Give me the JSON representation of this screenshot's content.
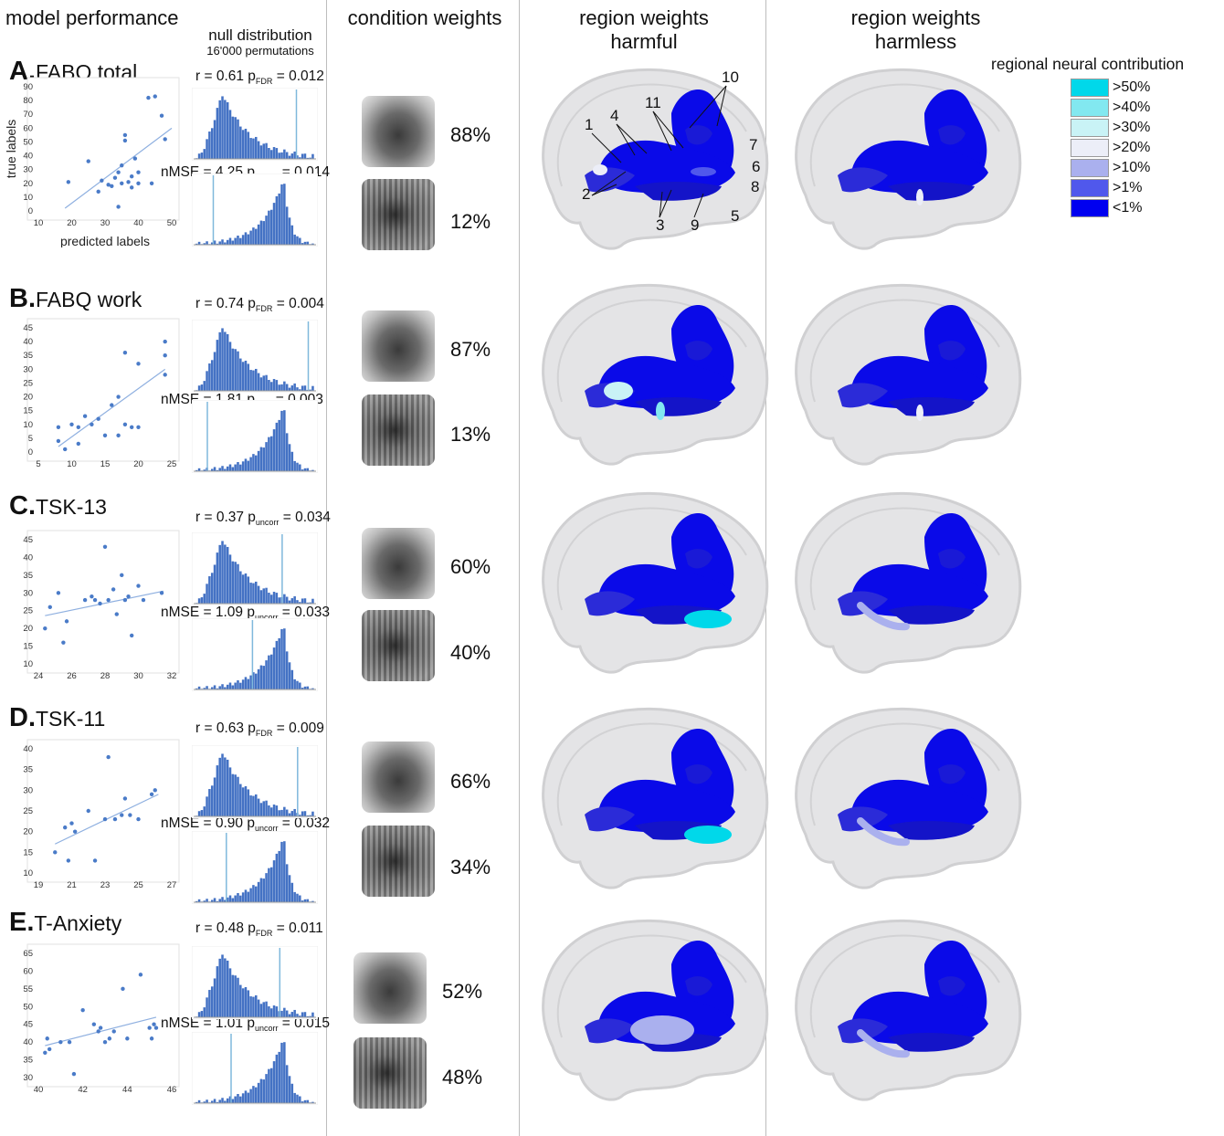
{
  "headers": {
    "model_performance": "model performance",
    "null_distribution": "null distribution",
    "permutations": "16'000 permutations",
    "condition_weights": "condition weights",
    "region_harmful_1": "region weights",
    "region_harmful_2": "harmful",
    "region_harmless_1": "region weights",
    "region_harmless_2": "harmless"
  },
  "legend": {
    "title": "regional neural contribution",
    "items": [
      {
        "label": ">50%",
        "color": "#00d8ea"
      },
      {
        "label": ">40%",
        "color": "#82e8f0"
      },
      {
        "label": ">30%",
        "color": "#c9f3f6"
      },
      {
        "label": ">20%",
        "color": "#eceef8"
      },
      {
        "label": ">10%",
        "color": "#aab0ee"
      },
      {
        "label": ">1%",
        "color": "#5058ec"
      },
      {
        "label": "<1%",
        "color": "#0000f0"
      }
    ]
  },
  "region_numbers": [
    "10",
    "11",
    "1",
    "4",
    "7",
    "6",
    "8",
    "2",
    "3",
    "9",
    "5"
  ],
  "colors": {
    "series": "#4a7bc8",
    "hist": "#4472c4",
    "brain": "#0a0ae8"
  },
  "panels": [
    {
      "letter": "A.",
      "name": "FABQ total",
      "r_stat": {
        "pre": "r = 0.61 p",
        "sub": "FDR",
        "post": " = 0.012"
      },
      "mse_stat": {
        "pre": "nMSE = 4.25 p",
        "sub": "uncorr",
        "post": " = 0.014"
      },
      "harmful": "88%",
      "harmless": "12%",
      "chart_data": {
        "type": "scatter",
        "xlabel": "predicted labels",
        "ylabel": "true labels",
        "xlim": [
          10,
          50
        ],
        "ylim": [
          0,
          90
        ],
        "xticks": [
          "10",
          "20",
          "30",
          "40",
          "50"
        ],
        "yticks": [
          "0",
          "10",
          "20",
          "30",
          "40",
          "50",
          "60",
          "70",
          "80",
          "90"
        ],
        "points": [
          [
            19,
            21
          ],
          [
            25,
            36
          ],
          [
            28,
            14
          ],
          [
            29,
            22
          ],
          [
            31,
            19
          ],
          [
            32,
            18
          ],
          [
            33,
            24
          ],
          [
            34,
            3
          ],
          [
            34,
            28
          ],
          [
            35,
            33
          ],
          [
            35,
            20
          ],
          [
            36,
            51
          ],
          [
            36,
            55
          ],
          [
            37,
            21
          ],
          [
            38,
            17
          ],
          [
            38,
            25
          ],
          [
            39,
            38
          ],
          [
            40,
            28
          ],
          [
            40,
            20
          ],
          [
            43,
            82
          ],
          [
            45,
            83
          ],
          [
            47,
            69
          ],
          [
            48,
            52
          ],
          [
            44,
            20
          ]
        ],
        "trend": [
          [
            18,
            2
          ],
          [
            50,
            60
          ]
        ]
      }
    },
    {
      "letter": "B.",
      "name": "FABQ work",
      "r_stat": {
        "pre": "r = 0.74 p",
        "sub": "FDR",
        "post": " = 0.004"
      },
      "mse_stat": {
        "pre": "nMSE = 1.81 p",
        "sub": "FDR",
        "post": " = 0.003"
      },
      "harmful": "87%",
      "harmless": "13%",
      "chart_data": {
        "type": "scatter",
        "xlim": [
          5,
          25
        ],
        "ylim": [
          0,
          45
        ],
        "xticks": [
          "5",
          "10",
          "15",
          "20",
          "25"
        ],
        "yticks": [
          "0",
          "5",
          "10",
          "15",
          "20",
          "25",
          "30",
          "35",
          "40",
          "45"
        ],
        "points": [
          [
            8,
            4
          ],
          [
            8,
            9
          ],
          [
            9,
            1
          ],
          [
            10,
            10
          ],
          [
            11,
            3
          ],
          [
            11,
            9
          ],
          [
            12,
            13
          ],
          [
            13,
            10
          ],
          [
            14,
            12
          ],
          [
            15,
            6
          ],
          [
            16,
            17
          ],
          [
            17,
            20
          ],
          [
            17,
            6
          ],
          [
            18,
            36
          ],
          [
            18,
            10
          ],
          [
            19,
            9
          ],
          [
            20,
            9
          ],
          [
            20,
            32
          ],
          [
            24,
            35
          ],
          [
            24,
            40
          ],
          [
            24,
            28
          ]
        ],
        "trend": [
          [
            8,
            2
          ],
          [
            24,
            30
          ]
        ]
      }
    },
    {
      "letter": "C.",
      "name": "TSK-13",
      "r_stat": {
        "pre": "r = 0.37 p",
        "sub": "uncorr",
        "post": " = 0.034"
      },
      "mse_stat": {
        "pre": "nMSE = 1.09 p",
        "sub": "uncorr",
        "post": " = 0.033"
      },
      "harmful": "60%",
      "harmless": "40%",
      "chart_data": {
        "type": "scatter",
        "xlim": [
          24,
          32
        ],
        "ylim": [
          10,
          45
        ],
        "xticks": [
          "24",
          "26",
          "28",
          "30",
          "32"
        ],
        "yticks": [
          "10",
          "15",
          "20",
          "25",
          "30",
          "35",
          "40",
          "45"
        ],
        "points": [
          [
            24.4,
            20
          ],
          [
            24.7,
            26
          ],
          [
            25.2,
            30
          ],
          [
            25.5,
            16
          ],
          [
            25.7,
            22
          ],
          [
            26.8,
            28
          ],
          [
            27.2,
            29
          ],
          [
            27.4,
            28
          ],
          [
            27.7,
            27
          ],
          [
            28,
            43
          ],
          [
            28.2,
            28
          ],
          [
            28.5,
            31
          ],
          [
            28.7,
            24
          ],
          [
            29,
            35
          ],
          [
            29.2,
            28
          ],
          [
            29.4,
            29
          ],
          [
            29.6,
            18
          ],
          [
            30,
            32
          ],
          [
            30.3,
            28
          ],
          [
            31.4,
            30
          ]
        ],
        "trend": [
          [
            24.4,
            23.6
          ],
          [
            31.5,
            30.5
          ]
        ]
      }
    },
    {
      "letter": "D.",
      "name": "TSK-11",
      "r_stat": {
        "pre": "r = 0.63 p",
        "sub": "FDR",
        "post": " = 0.009"
      },
      "mse_stat": {
        "pre": "nMSE = 0.90 p",
        "sub": "uncorr",
        "post": " = 0.032"
      },
      "harmful": "66%",
      "harmless": "34%",
      "chart_data": {
        "type": "scatter",
        "xlim": [
          19,
          27
        ],
        "ylim": [
          10,
          40
        ],
        "xticks": [
          "19",
          "21",
          "23",
          "25",
          "27"
        ],
        "yticks": [
          "10",
          "15",
          "20",
          "25",
          "30",
          "35",
          "40"
        ],
        "points": [
          [
            20,
            15
          ],
          [
            20.6,
            21
          ],
          [
            20.8,
            13
          ],
          [
            21,
            22
          ],
          [
            21.2,
            20
          ],
          [
            22,
            25
          ],
          [
            22.4,
            13
          ],
          [
            23,
            23
          ],
          [
            23.2,
            38
          ],
          [
            23.6,
            23
          ],
          [
            24,
            24
          ],
          [
            24.2,
            28
          ],
          [
            24.5,
            24
          ],
          [
            25,
            23
          ],
          [
            25.8,
            29
          ],
          [
            26,
            30
          ]
        ],
        "trend": [
          [
            20,
            17
          ],
          [
            26.2,
            29
          ]
        ]
      }
    },
    {
      "letter": "E.",
      "name": "T-Anxiety",
      "r_stat": {
        "pre": "r = 0.48 p",
        "sub": "FDR",
        "post": " = 0.011"
      },
      "mse_stat": {
        "pre": "nMSE = 1.01 p",
        "sub": "uncorr",
        "post": " = 0.015"
      },
      "harmful": "52%",
      "harmless": "48%",
      "chart_data": {
        "type": "scatter",
        "xlim": [
          40,
          46
        ],
        "ylim": [
          30,
          65
        ],
        "xticks": [
          "40",
          "42",
          "44",
          "46"
        ],
        "yticks": [
          "30",
          "35",
          "40",
          "45",
          "50",
          "55",
          "60",
          "65"
        ],
        "points": [
          [
            40.3,
            37
          ],
          [
            40.4,
            41
          ],
          [
            40.5,
            38
          ],
          [
            41,
            40
          ],
          [
            41.4,
            40
          ],
          [
            41.6,
            31
          ],
          [
            42,
            49
          ],
          [
            42.5,
            45
          ],
          [
            42.7,
            43
          ],
          [
            42.8,
            44
          ],
          [
            43,
            40
          ],
          [
            43.2,
            41
          ],
          [
            43.4,
            43
          ],
          [
            43.8,
            55
          ],
          [
            44,
            41
          ],
          [
            44.6,
            59
          ],
          [
            45,
            44
          ],
          [
            45.1,
            41
          ],
          [
            45.2,
            45
          ],
          [
            45.3,
            44
          ]
        ],
        "trend": [
          [
            40.3,
            39
          ],
          [
            45.3,
            47
          ]
        ]
      }
    }
  ]
}
